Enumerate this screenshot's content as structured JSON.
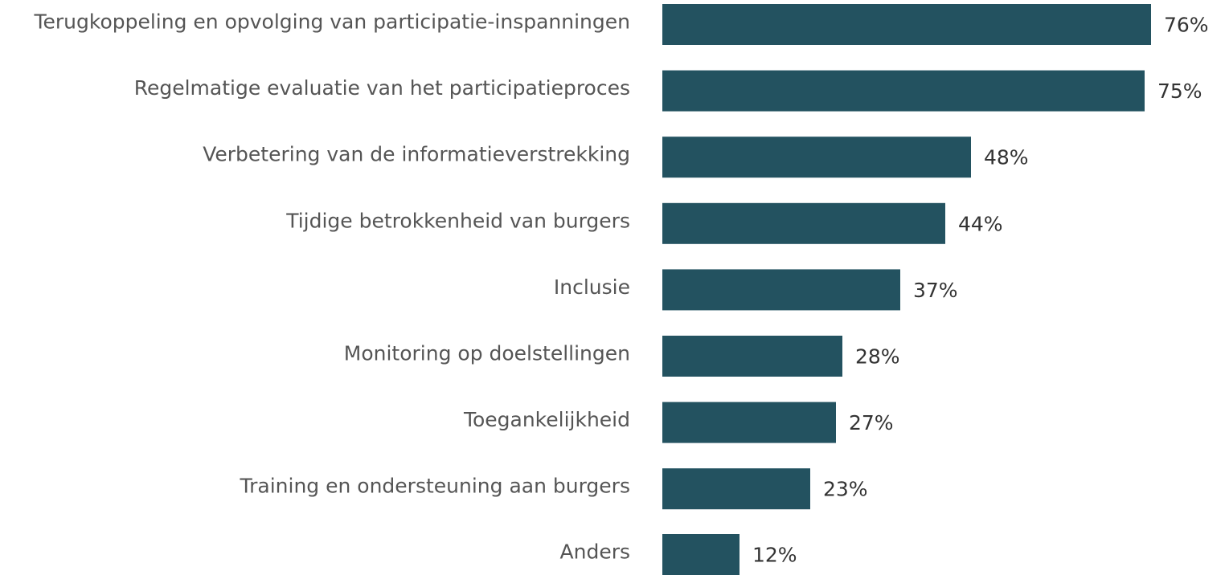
{
  "chart_data": {
    "type": "bar",
    "orientation": "horizontal",
    "categories": [
      "Terugkoppeling en opvolging van participatie-inspanningen",
      "Regelmatige evaluatie van het participatieproces",
      "Verbetering van de informatieverstrekking",
      "Tijdige betrokkenheid van burgers",
      "Inclusie",
      "Monitoring op doelstellingen",
      "Toegankelijkheid",
      "Training en ondersteuning aan burgers",
      "Anders"
    ],
    "values": [
      76,
      75,
      48,
      44,
      37,
      28,
      27,
      23,
      12
    ],
    "value_labels": [
      "76%",
      "75%",
      "48%",
      "44%",
      "37%",
      "28%",
      "27%",
      "23%",
      "12%"
    ],
    "color": "#235260"
  }
}
